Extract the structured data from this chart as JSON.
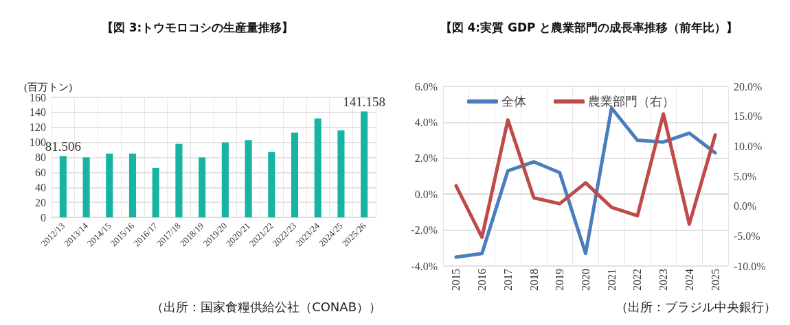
{
  "chart_data": [
    {
      "type": "bar",
      "title": "【図 3:トウモロコシの生産量推移】",
      "ylabel": "(百万トン)",
      "categories": [
        "2012/13",
        "2013/14",
        "2014/15",
        "2015/16",
        "2016/17",
        "2017/18",
        "2018/19",
        "2019/20",
        "2020/21",
        "2021/22",
        "2022/23",
        "2023/24",
        "2024/25",
        "2025/26"
      ],
      "values": [
        81.506,
        80,
        85,
        85,
        66,
        98,
        80,
        100,
        103,
        87,
        113,
        132,
        116,
        141.158
      ],
      "value_labels": [
        "81.506",
        null,
        null,
        null,
        null,
        null,
        null,
        null,
        null,
        null,
        null,
        null,
        null,
        "141.158"
      ],
      "color": "#17b3a3",
      "ylim": [
        0,
        160
      ],
      "yticks": [
        0,
        20,
        40,
        60,
        80,
        100,
        120,
        140,
        160
      ],
      "grid": true,
      "annotations": [
        "（出所：国家食糧供給公社（CONAB））"
      ]
    },
    {
      "type": "line",
      "title": "【図 4:実質 GDP と農業部門の成長率推移（前年比）】",
      "categories": [
        "2015",
        "2016",
        "2017",
        "2018",
        "2019",
        "2020",
        "2021",
        "2022",
        "2023",
        "2024",
        "2025"
      ],
      "series": [
        {
          "name": "全体",
          "color": "#4a7ebb",
          "values": [
            -3.5,
            -3.3,
            1.3,
            1.8,
            1.2,
            -3.3,
            4.8,
            3.0,
            2.9,
            3.4,
            2.3
          ]
        },
        {
          "name": "農業部門（右）",
          "color": "#be4b48",
          "axis": "y2",
          "values": [
            3.4,
            -5.2,
            14.4,
            1.4,
            0.4,
            3.9,
            -0.2,
            -1.6,
            15.4,
            -3.0,
            11.9
          ]
        }
      ],
      "ylim": [
        -4,
        6
      ],
      "yticks": [
        {
          "value": -4,
          "label": "-4.0%"
        },
        {
          "value": -2,
          "label": "-2.0%"
        },
        {
          "value": 0,
          "label": "0.0%"
        },
        {
          "value": 2,
          "label": "2.0%"
        },
        {
          "value": 4,
          "label": "4.0%"
        },
        {
          "value": 6,
          "label": "6.0%"
        }
      ],
      "y2lim": [
        -10,
        20
      ],
      "y2ticks": [
        {
          "value": -10,
          "label": "-10.0%"
        },
        {
          "value": -5,
          "label": "-5.0%"
        },
        {
          "value": 0,
          "label": "0.0%"
        },
        {
          "value": 5,
          "label": "5.0%"
        },
        {
          "value": 10,
          "label": "10.0%"
        },
        {
          "value": 15,
          "label": "15.0%"
        },
        {
          "value": 20,
          "label": "20.0%"
        }
      ],
      "grid": true,
      "legend": "top left",
      "marker": "none",
      "annotations": [
        "（出所：ブラジル中央銀行）"
      ]
    }
  ]
}
